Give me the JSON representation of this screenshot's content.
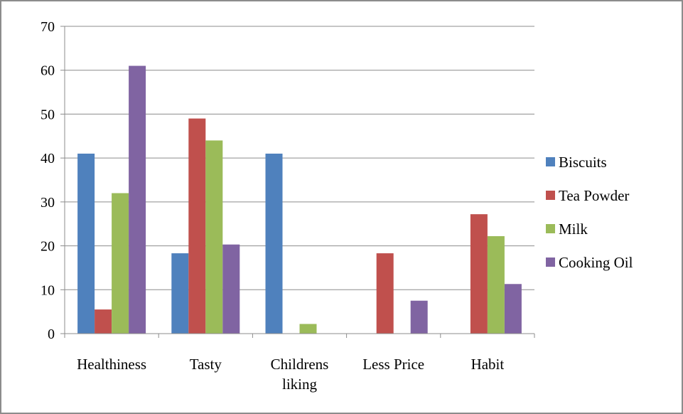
{
  "chart_data": {
    "type": "bar",
    "title": "",
    "xlabel": "",
    "ylabel": "",
    "ylim": [
      0,
      70
    ],
    "yticks": [
      0,
      10,
      20,
      30,
      40,
      50,
      60,
      70
    ],
    "grid": true,
    "legend_position": "right",
    "categories": [
      [
        "Healthiness"
      ],
      [
        "Tasty"
      ],
      [
        "Childrens",
        "liking"
      ],
      [
        "Less Price"
      ],
      [
        "Habit"
      ]
    ],
    "series": [
      {
        "name": "Biscuits",
        "color": "#4f81bd",
        "values": [
          41,
          18.3,
          41,
          0,
          0
        ]
      },
      {
        "name": "Tea Powder",
        "color": "#c0504d",
        "values": [
          5.5,
          49,
          0,
          18.3,
          27.2
        ]
      },
      {
        "name": "Milk",
        "color": "#9bbb59",
        "values": [
          32,
          44,
          2.2,
          0,
          22.2
        ]
      },
      {
        "name": "Cooking Oil",
        "color": "#8064a2",
        "values": [
          61,
          20.3,
          0,
          7.5,
          11.3
        ]
      }
    ]
  }
}
